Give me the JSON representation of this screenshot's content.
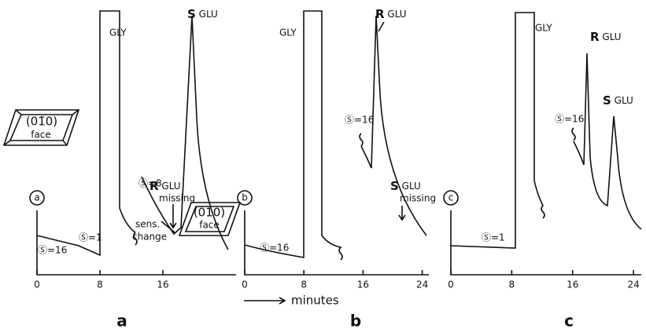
{
  "panels": [
    {
      "circle": "a",
      "letter": "a",
      "crystal_plane": "(01̄0)",
      "crystal_face": "face",
      "x_ticks": [
        0,
        8,
        16
      ],
      "gly": "GLY",
      "s_glu": {
        "symbol": "S",
        "name": "GLU"
      },
      "r_glu": {
        "symbol": "R",
        "name": "GLU",
        "note": "missing"
      },
      "sensitivity": [
        "Ⓢ=16",
        "Ⓢ=1",
        "Ⓢ=8"
      ],
      "sens_change": [
        "sens.",
        "change"
      ]
    },
    {
      "circle": "b",
      "letter": "b",
      "crystal_plane": "(010)",
      "crystal_face": "face",
      "x_ticks": [
        0,
        8,
        16,
        24
      ],
      "gly": "GLY",
      "r_glu": {
        "symbol": "R",
        "name": "GLU"
      },
      "s_glu": {
        "symbol": "S",
        "name": "GLU",
        "note": "missing"
      },
      "sensitivity": [
        "Ⓢ=16",
        "Ⓢ=16"
      ]
    },
    {
      "circle": "c",
      "letter": "c",
      "x_ticks": [
        0,
        8,
        16,
        24
      ],
      "gly": "GLY",
      "r_glu": {
        "symbol": "R",
        "name": "GLU"
      },
      "s_glu": {
        "symbol": "S",
        "name": "GLU"
      },
      "sensitivity": [
        "Ⓢ=1",
        "Ⓢ=16"
      ]
    }
  ],
  "x_axis_label": "minutes"
}
